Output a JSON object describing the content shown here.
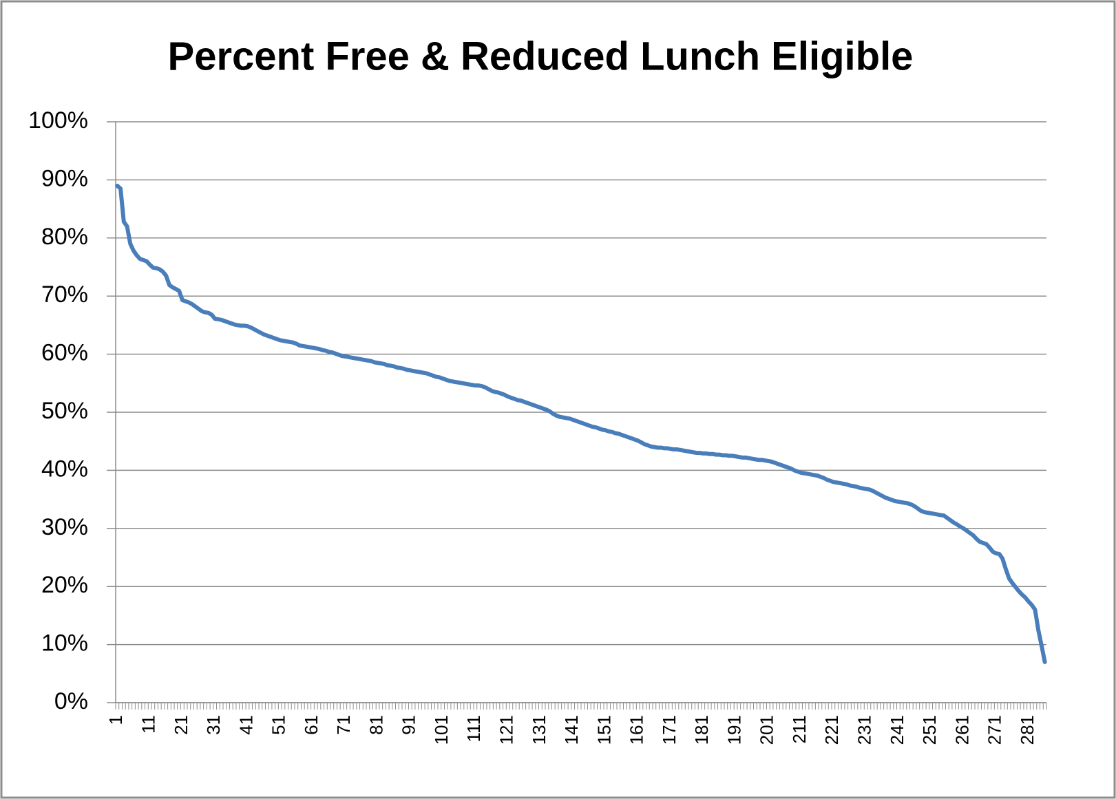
{
  "chart_data": {
    "type": "line",
    "title": "Percent Free & Reduced Lunch Eligible",
    "categories": [
      "1",
      null,
      null,
      null,
      null,
      null,
      null,
      null,
      null,
      null,
      "11",
      null,
      null,
      null,
      null,
      null,
      null,
      null,
      null,
      null,
      "21",
      null,
      null,
      null,
      null,
      null,
      null,
      null,
      null,
      null,
      "31",
      null,
      null,
      null,
      null,
      null,
      null,
      null,
      null,
      null,
      "41",
      null,
      null,
      null,
      null,
      null,
      null,
      null,
      null,
      null,
      "51",
      null,
      null,
      null,
      null,
      null,
      null,
      null,
      null,
      null,
      "61",
      null,
      null,
      null,
      null,
      null,
      null,
      null,
      null,
      null,
      "71",
      null,
      null,
      null,
      null,
      null,
      null,
      null,
      null,
      null,
      "81",
      null,
      null,
      null,
      null,
      null,
      null,
      null,
      null,
      null,
      "91",
      null,
      null,
      null,
      null,
      null,
      null,
      null,
      null,
      null,
      "101",
      null,
      null,
      null,
      null,
      null,
      null,
      null,
      null,
      null,
      "111",
      null,
      null,
      null,
      null,
      null,
      null,
      null,
      null,
      null,
      "121",
      null,
      null,
      null,
      null,
      null,
      null,
      null,
      null,
      null,
      "131",
      null,
      null,
      null,
      null,
      null,
      null,
      null,
      null,
      null,
      "141",
      null,
      null,
      null,
      null,
      null,
      null,
      null,
      null,
      null,
      "151",
      null,
      null,
      null,
      null,
      null,
      null,
      null,
      null,
      null,
      "161",
      null,
      null,
      null,
      null,
      null,
      null,
      null,
      null,
      null,
      "171",
      null,
      null,
      null,
      null,
      null,
      null,
      null,
      null,
      null,
      "181",
      null,
      null,
      null,
      null,
      null,
      null,
      null,
      null,
      null,
      "191",
      null,
      null,
      null,
      null,
      null,
      null,
      null,
      null,
      null,
      "201",
      null,
      null,
      null,
      null,
      null,
      null,
      null,
      null,
      null,
      "211",
      null,
      null,
      null,
      null,
      null,
      null,
      null,
      null,
      null,
      "221",
      null,
      null,
      null,
      null,
      null,
      null,
      null,
      null,
      null,
      "231",
      null,
      null,
      null,
      null,
      null,
      null,
      null,
      null,
      null,
      "241",
      null,
      null,
      null,
      null,
      null,
      null,
      null,
      null,
      null,
      "251",
      null,
      null,
      null,
      null,
      null,
      null,
      null,
      null,
      null,
      "261",
      null,
      null,
      null,
      null,
      null,
      null,
      null,
      null,
      null,
      "271",
      null,
      null,
      null,
      null,
      null,
      null,
      null,
      null,
      null,
      "281",
      null,
      null,
      null,
      null,
      null
    ],
    "values": [
      89,
      88.5,
      82.8,
      82,
      79,
      77.8,
      77,
      76.4,
      76.2,
      76,
      75.4,
      74.9,
      74.8,
      74.6,
      74.2,
      73.5,
      71.9,
      71.5,
      71.2,
      70.9,
      69.3,
      69.1,
      68.9,
      68.6,
      68.2,
      67.8,
      67.4,
      67.2,
      67.1,
      66.8,
      66.1,
      66.0,
      65.9,
      65.7,
      65.5,
      65.3,
      65.1,
      65.0,
      64.9,
      64.9,
      64.8,
      64.6,
      64.3,
      64.0,
      63.7,
      63.4,
      63.2,
      63.0,
      62.8,
      62.6,
      62.4,
      62.3,
      62.2,
      62.1,
      62.0,
      61.8,
      61.5,
      61.4,
      61.3,
      61.2,
      61.1,
      61.0,
      60.9,
      60.7,
      60.6,
      60.4,
      60.3,
      60.1,
      59.9,
      59.7,
      59.6,
      59.5,
      59.4,
      59.3,
      59.2,
      59.1,
      59.0,
      58.9,
      58.8,
      58.6,
      58.5,
      58.4,
      58.3,
      58.1,
      58.0,
      57.9,
      57.7,
      57.6,
      57.5,
      57.3,
      57.2,
      57.1,
      57.0,
      56.9,
      56.8,
      56.7,
      56.5,
      56.3,
      56.1,
      56.0,
      55.8,
      55.6,
      55.4,
      55.3,
      55.2,
      55.1,
      55.0,
      54.9,
      54.8,
      54.7,
      54.6,
      54.6,
      54.5,
      54.3,
      54.0,
      53.7,
      53.5,
      53.4,
      53.2,
      53.0,
      52.7,
      52.5,
      52.3,
      52.1,
      52.0,
      51.8,
      51.6,
      51.4,
      51.2,
      51.0,
      50.8,
      50.6,
      50.4,
      50.1,
      49.7,
      49.4,
      49.2,
      49.1,
      49.0,
      48.9,
      48.7,
      48.5,
      48.3,
      48.1,
      47.9,
      47.7,
      47.5,
      47.4,
      47.2,
      47.0,
      46.9,
      46.7,
      46.6,
      46.4,
      46.3,
      46.1,
      45.9,
      45.7,
      45.5,
      45.3,
      45.1,
      44.8,
      44.5,
      44.3,
      44.1,
      44.0,
      43.9,
      43.9,
      43.8,
      43.8,
      43.7,
      43.6,
      43.6,
      43.5,
      43.4,
      43.3,
      43.2,
      43.1,
      43.0,
      43.0,
      42.9,
      42.9,
      42.8,
      42.8,
      42.7,
      42.7,
      42.6,
      42.6,
      42.5,
      42.5,
      42.4,
      42.3,
      42.2,
      42.2,
      42.1,
      42.0,
      41.9,
      41.8,
      41.8,
      41.7,
      41.6,
      41.5,
      41.3,
      41.1,
      40.9,
      40.7,
      40.5,
      40.3,
      40.0,
      39.8,
      39.6,
      39.5,
      39.4,
      39.3,
      39.2,
      39.1,
      38.9,
      38.7,
      38.4,
      38.2,
      38.0,
      37.9,
      37.8,
      37.7,
      37.6,
      37.4,
      37.3,
      37.2,
      37.0,
      36.9,
      36.8,
      36.7,
      36.5,
      36.2,
      35.9,
      35.6,
      35.3,
      35.1,
      34.9,
      34.7,
      34.6,
      34.5,
      34.4,
      34.3,
      34.1,
      33.8,
      33.4,
      33.0,
      32.8,
      32.7,
      32.6,
      32.5,
      32.4,
      32.3,
      32.2,
      31.8,
      31.4,
      31.0,
      30.7,
      30.3,
      30.0,
      29.6,
      29.2,
      28.8,
      28.2,
      27.7,
      27.5,
      27.3,
      26.7,
      26.0,
      25.7,
      25.6,
      24.8,
      23.0,
      21.4,
      20.6,
      19.9,
      19.2,
      18.6,
      18.1,
      17.4,
      16.8,
      16.0,
      12.5,
      9.8,
      7.0
    ],
    "color": "#4a7ebb",
    "ylim": [
      0,
      100
    ],
    "yticks": [
      {
        "value": 0,
        "label": "0%"
      },
      {
        "value": 10,
        "label": "10%"
      },
      {
        "value": 20,
        "label": "20%"
      },
      {
        "value": 30,
        "label": "30%"
      },
      {
        "value": 40,
        "label": "40%"
      },
      {
        "value": 50,
        "label": "50%"
      },
      {
        "value": 60,
        "label": "60%"
      },
      {
        "value": 70,
        "label": "70%"
      },
      {
        "value": 80,
        "label": "80%"
      },
      {
        "value": 90,
        "label": "90%"
      },
      {
        "value": 100,
        "label": "100%"
      }
    ],
    "grid": true
  }
}
